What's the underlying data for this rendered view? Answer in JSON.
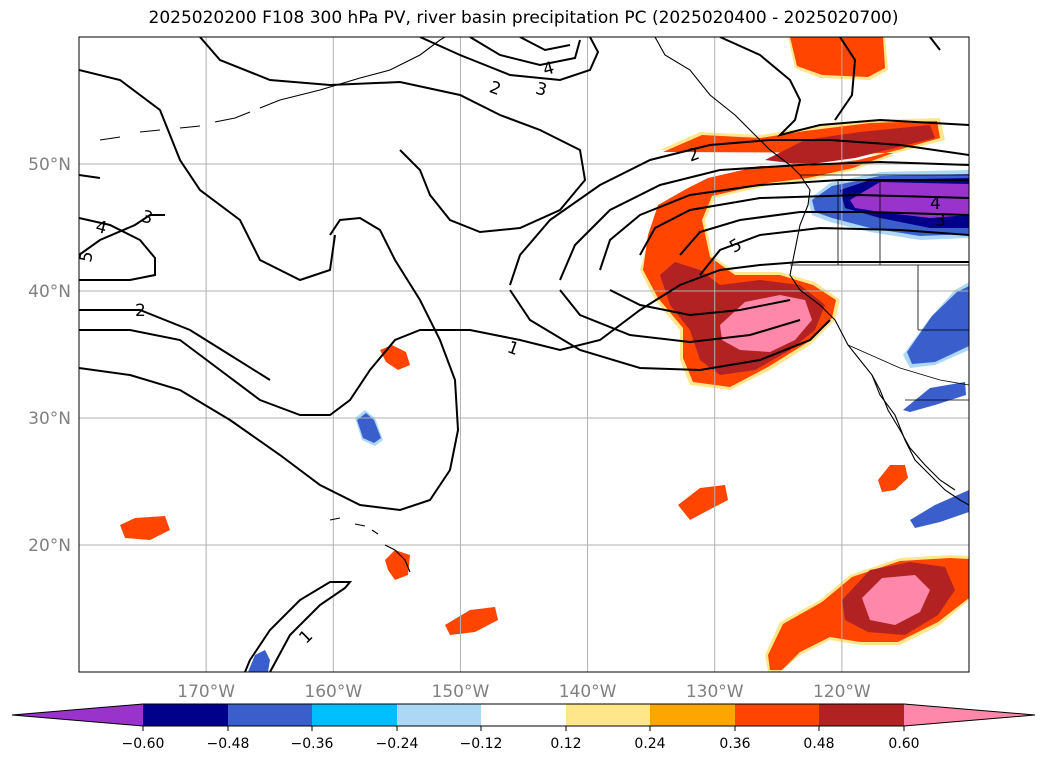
{
  "title": "2025020200 F108 300 hPa PV, river basin precipitation PC (2025020400 - 2025020700)",
  "map": {
    "extent": {
      "lon_min": -180,
      "lon_max": -110,
      "lat_min": 10,
      "lat_max": 60
    },
    "lat_ticks": [
      {
        "value": 50,
        "label": "50°N"
      },
      {
        "value": 40,
        "label": "40°N"
      },
      {
        "value": 30,
        "label": "30°N"
      },
      {
        "value": 20,
        "label": "20°N"
      }
    ],
    "lon_ticks": [
      {
        "value": -170,
        "label": "170°W"
      },
      {
        "value": -160,
        "label": "160°W"
      },
      {
        "value": -150,
        "label": "150°W"
      },
      {
        "value": -140,
        "label": "140°W"
      },
      {
        "value": -130,
        "label": "130°W"
      },
      {
        "value": -120,
        "label": "120°W"
      }
    ],
    "gridlines": true
  },
  "pv_contour_labels": [
    "1",
    "2",
    "3",
    "4",
    "5"
  ],
  "colorbar": {
    "ticks": [
      "−0.60",
      "−0.48",
      "−0.36",
      "−0.24",
      "−0.12",
      "0.12",
      "0.24",
      "0.36",
      "0.48",
      "0.60"
    ],
    "colors": [
      "#9933cc",
      "#00008b",
      "#3a5fcd",
      "#00bfff",
      "#add8f5",
      "#ffffff",
      "#ffe68a",
      "#ffa500",
      "#ff4500",
      "#b22222",
      "#ff88aa"
    ],
    "extend": "both"
  }
}
